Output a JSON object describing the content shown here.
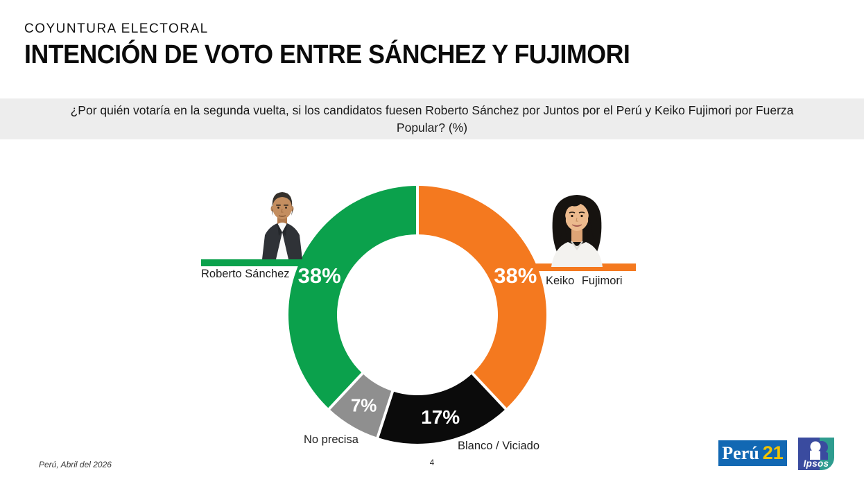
{
  "slide": {
    "kicker": "COYUNTURA ELECTORAL",
    "title": "INTENCIÓN DE VOTO ENTRE SÁNCHEZ Y FUJIMORI",
    "question_line1": "¿Por quién votaría en la segunda vuelta, si los candidatos fuesen Roberto Sánchez por Juntos por el Perú y Keiko Fujimori por Fuerza",
    "question_line2": "Popular? (%)",
    "footnote": "Perú, Abril del 2026",
    "page_number": "4"
  },
  "branding": {
    "peru21": {
      "name": "Perú",
      "number": "21",
      "bg_color": "#1268B3",
      "number_color": "#F2C300"
    },
    "ipsos": {
      "name": "Ipsos",
      "left_color": "#3A4B9F",
      "right_color": "#2E9C8F"
    }
  },
  "chart_data": {
    "type": "pie",
    "variant": "donut",
    "units": "%",
    "title": "Intención de voto entre Sánchez y Fujimori",
    "direction": "clockwise",
    "start_angle_deg": 0,
    "outer_radius_px": 186,
    "inner_radius_px": 116,
    "separator_color": "#FFFFFF",
    "segments": [
      {
        "label": "Keiko Fujimori",
        "value": 38,
        "display": "38%",
        "color": "#F4791F",
        "label_color": "#FFFFFF",
        "callout_side": "right"
      },
      {
        "label": "Blanco / Viciado",
        "value": 17,
        "display": "17%",
        "color": "#0B0B0B",
        "label_color": "#FFFFFF"
      },
      {
        "label": "No precisa",
        "value": 7,
        "display": "7%",
        "color": "#8F8F8F",
        "label_color": "#FFFFFF"
      },
      {
        "label": "Roberto Sánchez",
        "value": 38,
        "display": "38%",
        "color": "#0BA14C",
        "label_color": "#FFFFFF",
        "callout_side": "left"
      }
    ]
  }
}
